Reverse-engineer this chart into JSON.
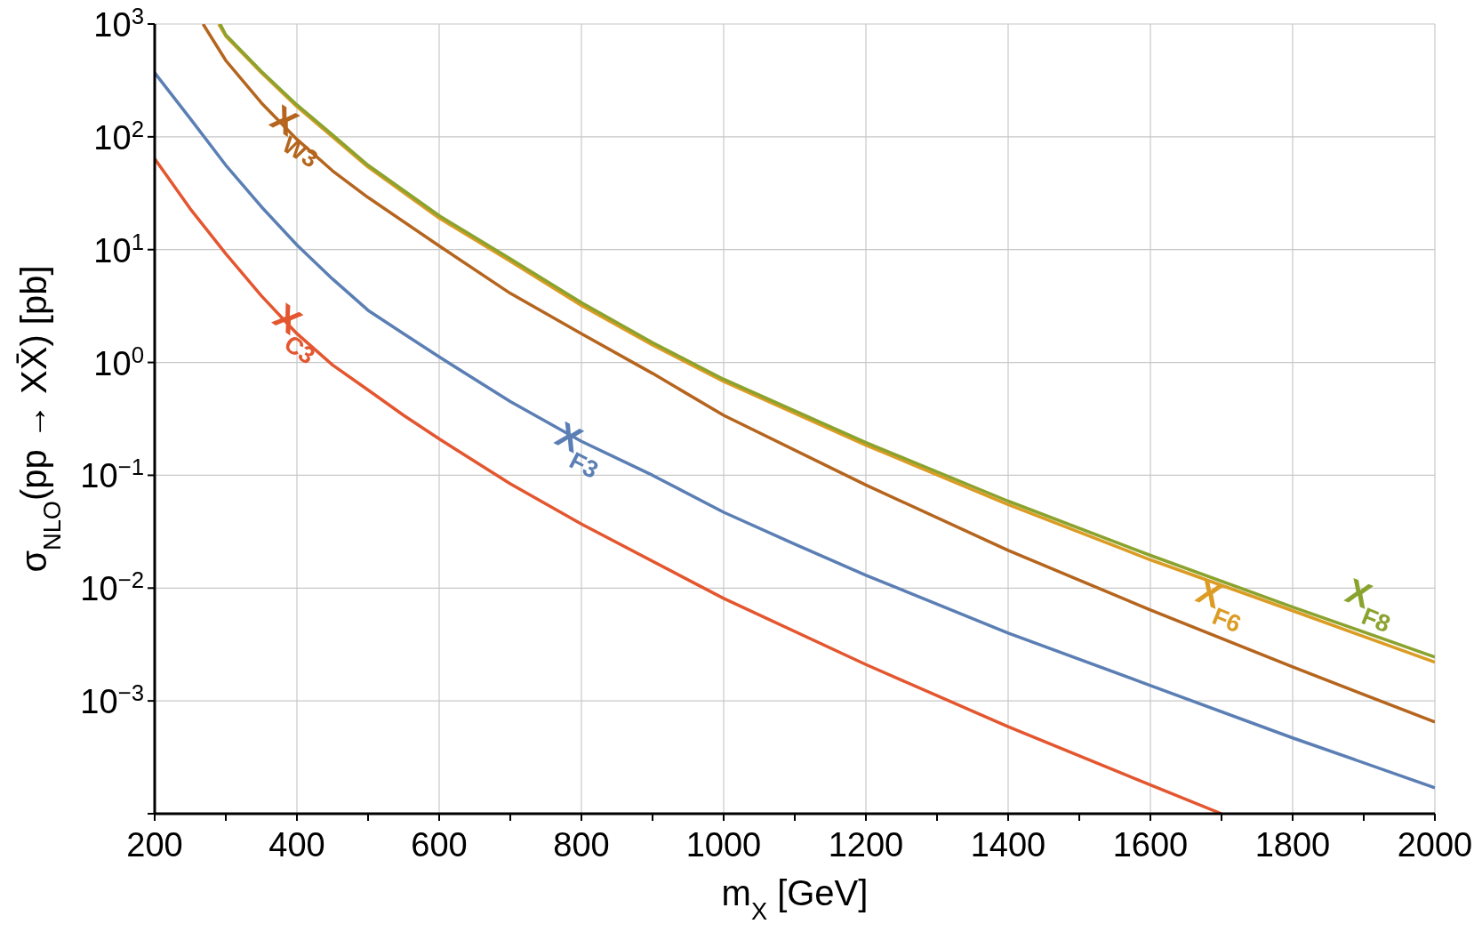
{
  "chart_data": {
    "type": "line",
    "xlabel": "m$_{X}$ [GeV]",
    "ylabel": "σ$_{NLO}$(pp → XX̄) [pb]",
    "xlim": [
      200,
      2000
    ],
    "xticks": [
      200,
      {
        "value": 300,
        "label": null
      },
      400,
      {
        "value": 500,
        "label": null
      },
      600,
      {
        "value": 700,
        "label": null
      },
      800,
      {
        "value": 900,
        "label": null
      },
      1000,
      {
        "value": 1100,
        "label": null
      },
      1200,
      {
        "value": 1300,
        "label": null
      },
      1400,
      {
        "value": 1500,
        "label": null
      },
      1600,
      {
        "value": 1700,
        "label": null
      },
      1800,
      {
        "value": 1900,
        "label": null
      },
      2000
    ],
    "ylim": [
      0.0001,
      1000
    ],
    "yticks": [
      {
        "value": 0.0001,
        "label": null
      },
      {
        "value": 0.001,
        "label": "10$^{−3}$"
      },
      {
        "value": 0.01,
        "label": "10$^{−2}$"
      },
      {
        "value": 0.1,
        "label": "10$^{−1}$"
      },
      {
        "value": 1,
        "label": "10$^{0}$"
      },
      {
        "value": 10,
        "label": "10$^{1}$"
      },
      {
        "value": 100,
        "label": "10$^{2}$"
      },
      {
        "value": 1000,
        "label": "10$^{3}$"
      }
    ],
    "log": "y",
    "grid": true,
    "legend": false,
    "marker": "none",
    "line_style": "solid",
    "series": [
      {
        "name": "X$_{C3}$",
        "color": "#e4562f",
        "x": [
          200,
          250,
          300,
          350,
          400,
          450,
          500,
          550,
          600,
          700,
          800,
          1000,
          1200,
          1400,
          1600,
          1700
        ],
        "values": [
          64,
          23,
          9.2,
          3.9,
          1.8,
          0.95,
          0.57,
          0.34,
          0.21,
          0.084,
          0.037,
          0.0081,
          0.0021,
          0.00059,
          0.00018,
          0.0001
        ]
      },
      {
        "name": "X$_{F3}$",
        "color": "#5b7fb4",
        "x": [
          200,
          250,
          300,
          350,
          400,
          450,
          500,
          550,
          600,
          700,
          800,
          900,
          1000,
          1100,
          1200,
          1400,
          1600,
          1800,
          2000
        ],
        "values": [
          370,
          145,
          56,
          24,
          11,
          5.5,
          2.9,
          1.8,
          1.12,
          0.45,
          0.2,
          0.1,
          0.047,
          0.0245,
          0.013,
          0.004,
          0.00137,
          0.00047,
          0.00017
        ]
      },
      {
        "name": "X$_{W3}$",
        "color": "#b5651d",
        "x": [
          268,
          300,
          350,
          400,
          450,
          500,
          600,
          700,
          800,
          900,
          1000,
          1200,
          1400,
          1600,
          1800,
          2000
        ],
        "values": [
          1000,
          475,
          200,
          95,
          50,
          29,
          10.8,
          4.1,
          1.8,
          0.8,
          0.34,
          0.082,
          0.0216,
          0.0064,
          0.002,
          0.00065
        ]
      },
      {
        "name": "X$_{F6}$",
        "color": "#dc9c24",
        "x": [
          290,
          300,
          350,
          400,
          450,
          500,
          600,
          700,
          800,
          900,
          1000,
          1200,
          1400,
          1600,
          1800,
          2000
        ],
        "values": [
          1000,
          780,
          370,
          185,
          100,
          54,
          19,
          7.9,
          3.2,
          1.43,
          0.68,
          0.185,
          0.055,
          0.0178,
          0.0063,
          0.0022
        ]
      },
      {
        "name": "X$_{F8}$",
        "color": "#8aa32e",
        "x": [
          292,
          300,
          350,
          400,
          450,
          500,
          600,
          700,
          800,
          900,
          1000,
          1200,
          1400,
          1600,
          1800,
          2000
        ],
        "values": [
          1000,
          800,
          380,
          192,
          104,
          56,
          20,
          8.3,
          3.4,
          1.5,
          0.71,
          0.195,
          0.059,
          0.0195,
          0.0068,
          0.00245
        ]
      }
    ]
  }
}
